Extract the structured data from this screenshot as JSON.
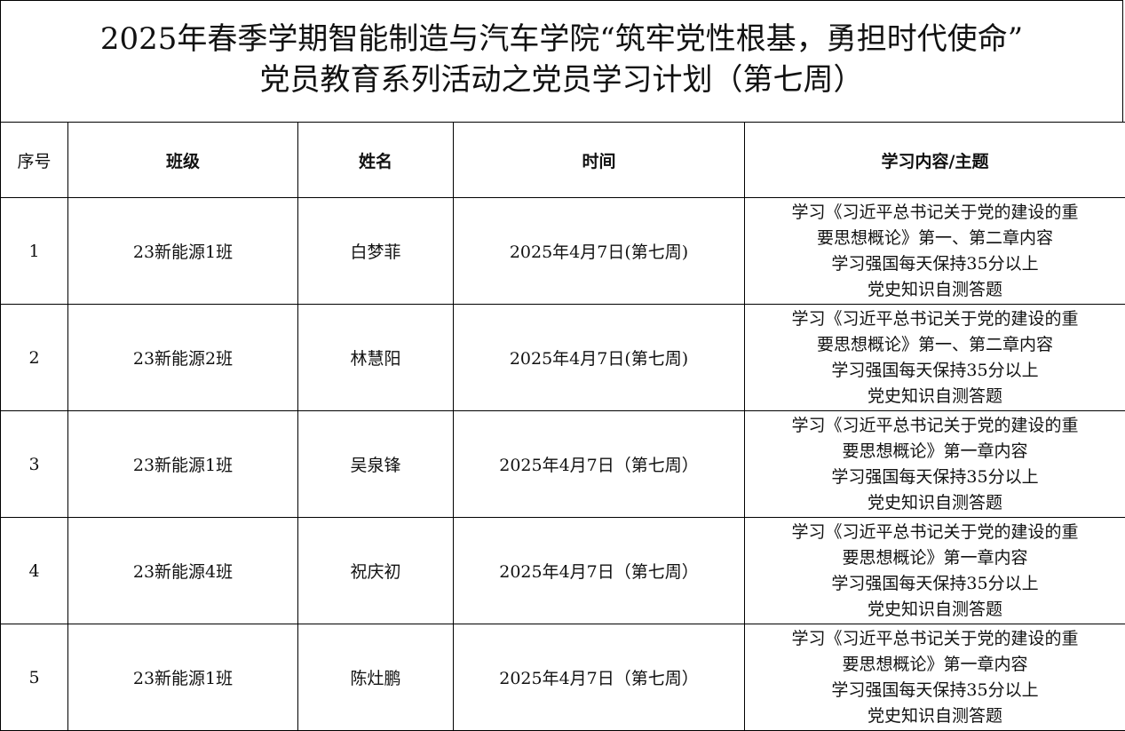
{
  "title": {
    "line1": "2025年春季学期智能制造与汽车学院“筑牢党性根基，勇担时代使命”",
    "line2": "党员教育系列活动之党员学习计划（第七周）"
  },
  "table": {
    "headers": [
      "序号",
      "班级",
      "姓名",
      "时间",
      "学习内容/主题"
    ],
    "rows": [
      {
        "seq": "1",
        "class": "23新能源1班",
        "name": "白梦菲",
        "time": "2025年4月7日(第七周)",
        "content": [
          "学习《习近平总书记关于党的建设的重",
          "要思想概论》第一、第二章内容",
          "学习强国每天保持35分以上",
          "党史知识自测答题"
        ]
      },
      {
        "seq": "2",
        "class": "23新能源2班",
        "name": "林慧阳",
        "time": "2025年4月7日(第七周)",
        "content": [
          "学习《习近平总书记关于党的建设的重",
          "要思想概论》第一、第二章内容",
          "学习强国每天保持35分以上",
          "党史知识自测答题"
        ]
      },
      {
        "seq": "3",
        "class": "23新能源1班",
        "name": "吴泉锋",
        "time": "2025年4月7日（第七周）",
        "content": [
          "学习《习近平总书记关于党的建设的重",
          "要思想概论》第一章内容",
          "学习强国每天保持35分以上",
          "党史知识自测答题"
        ]
      },
      {
        "seq": "4",
        "class": "23新能源4班",
        "name": "祝庆初",
        "time": "2025年4月7日（第七周）",
        "content": [
          "学习《习近平总书记关于党的建设的重",
          "要思想概论》第一章内容",
          "学习强国每天保持35分以上",
          "党史知识自测答题"
        ]
      },
      {
        "seq": "5",
        "class": "23新能源1班",
        "name": "陈灶鹏",
        "time": "2025年4月7日（第七周）",
        "content": [
          "学习《习近平总书记关于党的建设的重",
          "要思想概论》第一章内容",
          "学习强国每天保持35分以上",
          "党史知识自测答题"
        ]
      }
    ]
  }
}
